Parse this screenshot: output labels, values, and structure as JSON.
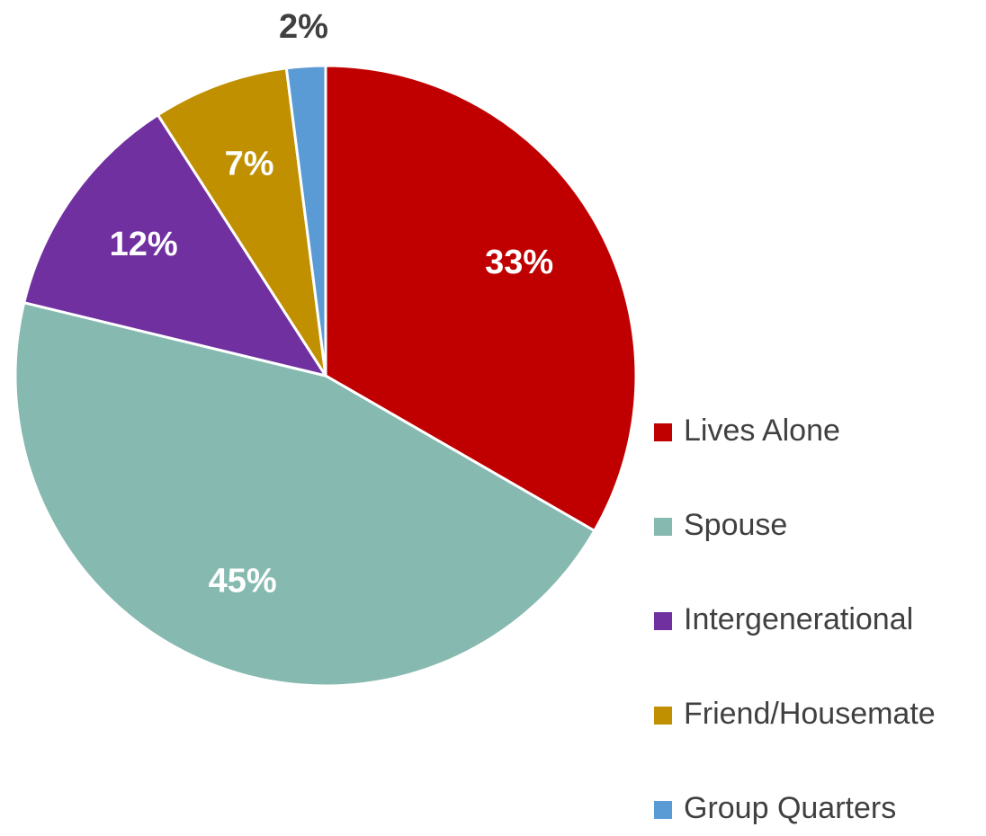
{
  "chart_data": {
    "type": "pie",
    "categories": [
      "Lives Alone",
      "Spouse",
      "Intergenerational",
      "Friend/Housemate",
      "Group Quarters"
    ],
    "values": [
      33,
      45,
      12,
      7,
      2
    ],
    "value_labels": [
      "33%",
      "45%",
      "12%",
      "7%",
      "2%"
    ],
    "colors": [
      "#c00000",
      "#86b9b0",
      "#7030a0",
      "#c09000",
      "#5b9bd5"
    ],
    "legend": "right"
  }
}
